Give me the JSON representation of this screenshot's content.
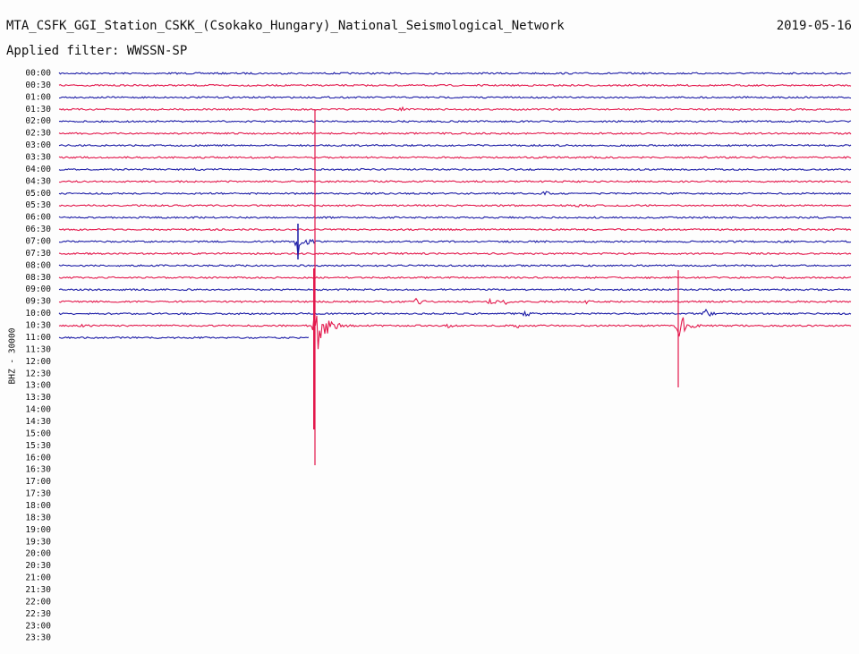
{
  "header": {
    "title": "MTA_CSFK_GGI_Station_CSKK_(Csokako_Hungary)_National_Seismological_Network",
    "date": "2019-05-16",
    "filter": "Applied filter: WWSSN-SP"
  },
  "channel_label": "BHZ - 30000",
  "time_labels": [
    "00:00",
    "00:30",
    "01:00",
    "01:30",
    "02:00",
    "02:30",
    "03:00",
    "03:30",
    "04:00",
    "04:30",
    "05:00",
    "05:30",
    "06:00",
    "06:30",
    "07:00",
    "07:30",
    "08:00",
    "08:30",
    "09:00",
    "09:30",
    "10:00",
    "10:30",
    "11:00",
    "11:30",
    "12:00",
    "12:30",
    "13:00",
    "13:30",
    "14:00",
    "14:30",
    "15:00",
    "15:30",
    "16:00",
    "16:30",
    "17:00",
    "17:30",
    "18:00",
    "18:30",
    "19:00",
    "19:30",
    "20:00",
    "20:30",
    "21:00",
    "21:30",
    "22:00",
    "22:30",
    "23:00",
    "23:30"
  ]
}
